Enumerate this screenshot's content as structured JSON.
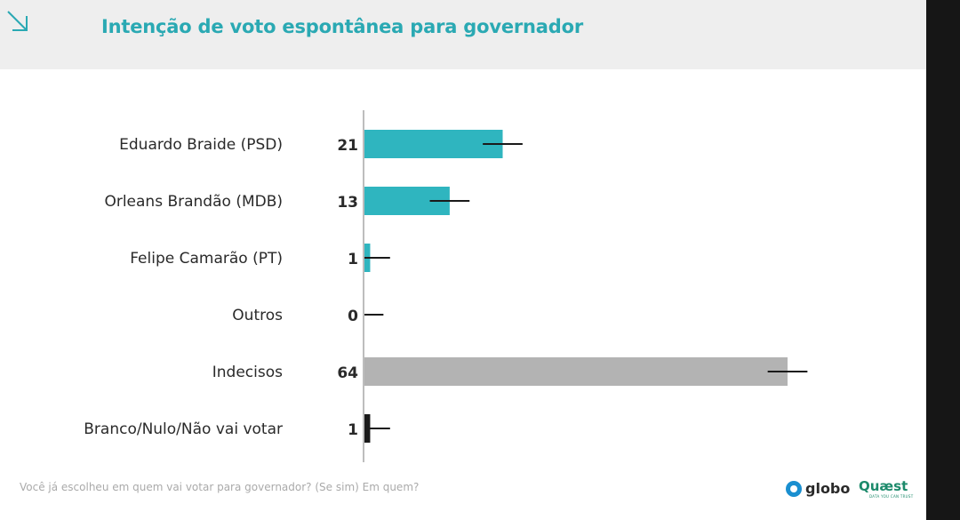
{
  "header": {
    "title": "Intenção de voto espontânea para governador",
    "corner_icon": "arrow-down-right-icon"
  },
  "chart_data": {
    "type": "bar",
    "orientation": "horizontal",
    "categories": [
      "Eduardo Braide (PSD)",
      "Orleans Brandão (MDB)",
      "Felipe Camarão (PT)",
      "Outros",
      "Indecisos",
      "Branco/Nulo/Não vai votar"
    ],
    "values": [
      21,
      13,
      1,
      0,
      64,
      1
    ],
    "value_labels": [
      "21",
      "13",
      "1",
      "0",
      "64",
      "1"
    ],
    "margin_of_error": 3,
    "bar_colors": [
      "#2fb5bf",
      "#2fb5bf",
      "#2fb5bf",
      "#2fb5bf",
      "#b3b3b3",
      "#1a1a1a"
    ],
    "xlim": [
      0,
      64
    ],
    "grid": false,
    "title": "Intenção de voto espontânea para governador"
  },
  "footer": {
    "question": "Você já escolheu em quem vai votar para governador? (Se sim) Em quem?",
    "logo_globo": "globo",
    "logo_quaest": "Quæst",
    "quaest_tagline": "DATA YOU CAN TRUST"
  }
}
